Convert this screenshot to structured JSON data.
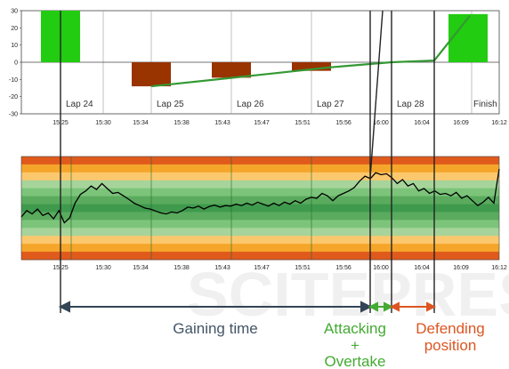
{
  "chart_data": [
    {
      "type": "bar",
      "panel": "lap-time-delta",
      "ylim": [
        -30,
        30
      ],
      "yticks": [
        30,
        20,
        10,
        0,
        -10,
        -20,
        -30
      ],
      "x_time_ticks": [
        "15:25",
        "15:30",
        "15:34",
        "15:38",
        "15:43",
        "15:47",
        "15:51",
        "15:56",
        "16:00",
        "16:04",
        "16:09",
        "16:12"
      ],
      "laps": [
        "Lap 24",
        "Lap 25",
        "Lap 26",
        "Lap 27",
        "Lap 28",
        "Finish"
      ],
      "bars": [
        {
          "lap": "Lap 24",
          "value": 30,
          "color": "#22cc11"
        },
        {
          "lap": "Lap 25",
          "value": -14,
          "color": "#993300"
        },
        {
          "lap": "Lap 26",
          "value": -9,
          "color": "#993300"
        },
        {
          "lap": "Lap 27",
          "value": -5,
          "color": "#993300"
        },
        {
          "lap": "Finish",
          "value": 28,
          "color": "#22cc11"
        }
      ],
      "trend_line": {
        "color": "#339933",
        "time_points": [
          "15:34",
          "15:47",
          "15:56",
          "16:00",
          "16:04",
          "16:09"
        ],
        "values": [
          -14,
          -8,
          -3,
          0,
          1,
          27
        ]
      }
    },
    {
      "type": "line",
      "panel": "performance-band",
      "x_time_ticks": [
        "15:25",
        "15:30",
        "15:34",
        "15:38",
        "15:43",
        "15:47",
        "15:51",
        "15:56",
        "16:00",
        "16:04",
        "16:09",
        "16:12"
      ],
      "band_colors": [
        "#e05a1c",
        "#f5a62a",
        "#fcc86d",
        "#a6d49a",
        "#7cc47a",
        "#5aab5e",
        "#3f9a4d",
        "#5aab5e",
        "#7cc47a",
        "#a6d49a",
        "#fcc86d",
        "#f5a62a",
        "#e05a1c"
      ],
      "series": [
        {
          "color": "#000000",
          "values": [
            -0.18,
            -0.05,
            -0.12,
            -0.02,
            -0.15,
            -0.1,
            -0.22,
            -0.05,
            -0.3,
            -0.2,
            0.1,
            0.28,
            0.35,
            0.45,
            0.38,
            0.5,
            0.4,
            0.3,
            0.32,
            0.25,
            0.18,
            0.1,
            0.05,
            0.0,
            -0.02,
            -0.06,
            -0.1,
            -0.12,
            -0.08,
            -0.1,
            -0.05,
            0.02,
            0.0,
            0.04,
            -0.02,
            0.03,
            0.06,
            0.02,
            0.05,
            0.04,
            0.08,
            0.05,
            0.1,
            0.06,
            0.12,
            0.08,
            0.04,
            0.1,
            0.05,
            0.12,
            0.08,
            0.15,
            0.1,
            0.18,
            0.22,
            0.2,
            0.3,
            0.25,
            0.15,
            0.25,
            0.3,
            0.35,
            0.42,
            0.55,
            0.65,
            0.6,
            0.72,
            0.68,
            0.7,
            0.62,
            0.5,
            0.58,
            0.45,
            0.5,
            0.35,
            0.4,
            0.3,
            0.35,
            0.28,
            0.3,
            0.25,
            0.32,
            0.2,
            0.25,
            0.15,
            0.05,
            0.12,
            0.22,
            0.1,
            0.8
          ]
        }
      ]
    }
  ],
  "labels": {
    "phase_gaining": "Gaining time",
    "phase_attacking_1": "Attacking",
    "phase_attacking_2": "+",
    "phase_attacking_3": "Overtake",
    "phase_defending_1": "Defending",
    "phase_defending_2": "position"
  },
  "colors": {
    "gaining": "#445566",
    "attacking": "#44aa33",
    "defending": "#dd5522",
    "arrow_gaining": "#334455"
  }
}
